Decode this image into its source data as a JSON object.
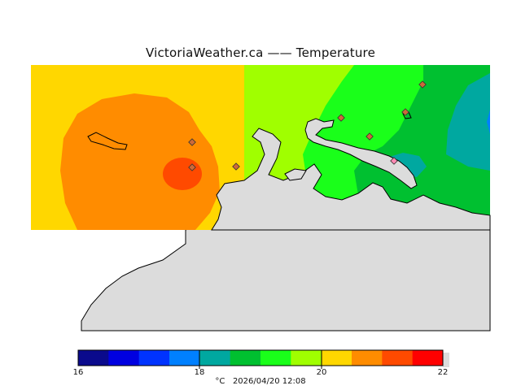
{
  "title": "VictoriaWeather.ca  —— Temperature",
  "legend": {
    "unit": "°C",
    "timestamp": "2026/04/20 12:08",
    "tick_labels": [
      "16",
      "18",
      "20",
      "22"
    ],
    "colors": [
      "#0a0a8c",
      "#0000e0",
      "#0033ff",
      "#0080ff",
      "#00a8a0",
      "#00c030",
      "#1aff1a",
      "#a0ff00",
      "#ffd700",
      "#ff8c00",
      "#ff4a00",
      "#ff0000"
    ]
  },
  "map": {
    "land_color": "#dcdcdc",
    "coastline_color": "#000000",
    "station_count": 8
  }
}
